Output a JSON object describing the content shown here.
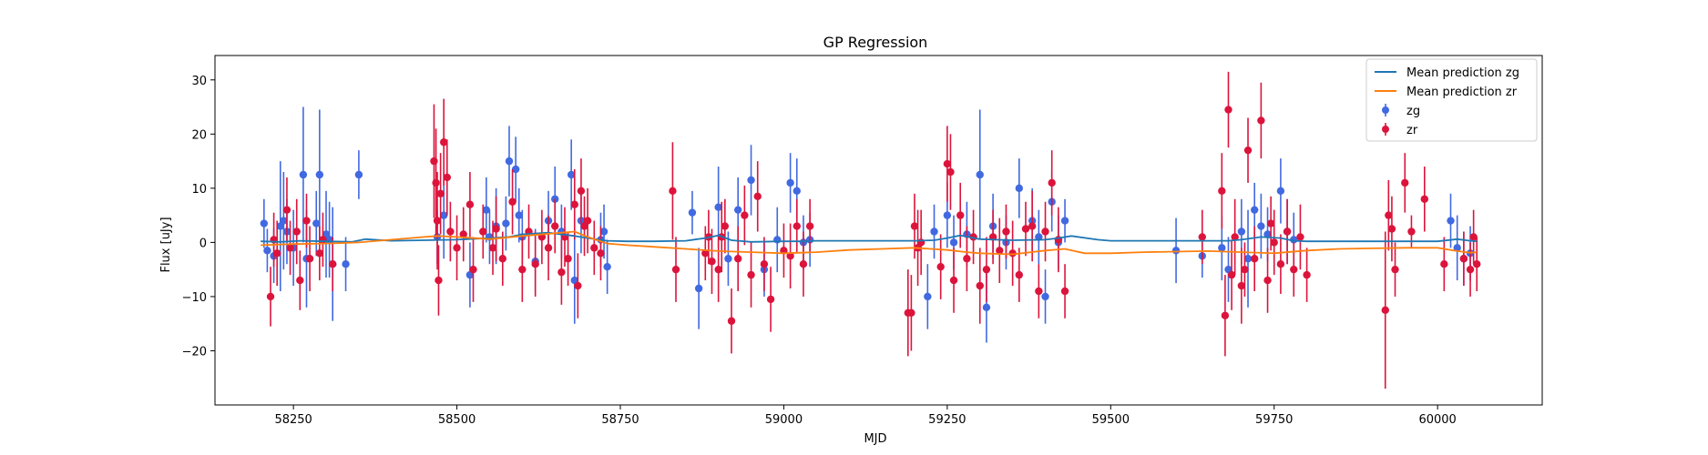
{
  "chart_data": {
    "type": "scatter",
    "title": "GP Regression",
    "xlabel": "MJD",
    "ylabel": "Flux [uJy]",
    "xlim": [
      58130,
      60160
    ],
    "ylim": [
      -30,
      34.5
    ],
    "xticks": [
      58250,
      58500,
      58750,
      59000,
      59250,
      59500,
      59750,
      60000
    ],
    "xtick_labels": [
      "58250",
      "58500",
      "58750",
      "59000",
      "59250",
      "59500",
      "59750",
      "60000"
    ],
    "yticks": [
      -20,
      -10,
      0,
      10,
      20,
      30
    ],
    "ytick_labels": [
      "−20",
      "−10",
      "0",
      "10",
      "20",
      "30"
    ],
    "grid": false,
    "legend_position": "top-right",
    "series": [
      {
        "name": "Mean prediction zg",
        "kind": "line",
        "color": "#1f77b4",
        "x": [
          58200,
          58230,
          58260,
          58300,
          58340,
          58360,
          58400,
          58450,
          58500,
          58550,
          58580,
          58600,
          58640,
          58680,
          58700,
          58730,
          58760,
          58800,
          58850,
          58880,
          58900,
          58920,
          58950,
          59000,
          59030,
          59050,
          59100,
          59150,
          59200,
          59230,
          59250,
          59270,
          59300,
          59350,
          59400,
          59420,
          59440,
          59480,
          59500,
          59550,
          59600,
          59640,
          59680,
          59700,
          59730,
          59760,
          59780,
          59800,
          59850,
          59900,
          59950,
          60000,
          60030,
          60050,
          60060
        ],
        "y": [
          0.2,
          0.1,
          0.3,
          0.2,
          0.1,
          0.6,
          0.3,
          0.4,
          0.5,
          0.8,
          1.0,
          1.5,
          1.8,
          1.2,
          0.8,
          0.3,
          0.2,
          0.2,
          0.3,
          0.8,
          1.3,
          0.4,
          0.1,
          0.2,
          0.2,
          0.3,
          0.3,
          0.3,
          0.3,
          0.4,
          0.8,
          1.3,
          0.6,
          0.4,
          0.5,
          0.8,
          1.2,
          0.5,
          0.3,
          0.3,
          0.3,
          0.3,
          0.3,
          0.5,
          1.0,
          0.8,
          0.3,
          0.2,
          0.2,
          0.2,
          0.2,
          0.2,
          0.6,
          0.3,
          0.2
        ]
      },
      {
        "name": "Mean prediction zr",
        "kind": "line",
        "color": "#ff7f0e",
        "x": [
          58200,
          58250,
          58300,
          58350,
          58400,
          58450,
          58470,
          58500,
          58550,
          58600,
          58650,
          58680,
          58700,
          58730,
          58760,
          58800,
          58850,
          58900,
          58950,
          59000,
          59050,
          59100,
          59150,
          59200,
          59250,
          59280,
          59300,
          59350,
          59400,
          59430,
          59460,
          59500,
          59550,
          59600,
          59650,
          59700,
          59750,
          59800,
          59850,
          59900,
          59950,
          60000,
          60030,
          60050,
          60060
        ],
        "y": [
          -0.5,
          -0.3,
          -0.2,
          0.0,
          0.5,
          1.0,
          1.2,
          1.0,
          0.6,
          1.2,
          1.7,
          2.0,
          1.0,
          -0.2,
          -0.5,
          -0.8,
          -1.2,
          -1.6,
          -1.8,
          -2.0,
          -1.8,
          -1.4,
          -1.2,
          -1.0,
          -1.4,
          -1.8,
          -2.0,
          -2.2,
          -1.5,
          -1.2,
          -2.0,
          -2.0,
          -1.8,
          -1.7,
          -1.6,
          -1.8,
          -2.0,
          -1.5,
          -1.2,
          -1.1,
          -1.0,
          -1.0,
          -1.6,
          -1.9,
          -1.8
        ]
      },
      {
        "name": "zg",
        "kind": "errorbar",
        "color": "#4169e1",
        "x": [
          58205,
          58210,
          58220,
          58230,
          58235,
          58240,
          58250,
          58265,
          58270,
          58285,
          58290,
          58300,
          58305,
          58310,
          58330,
          58350,
          58470,
          58480,
          58520,
          58545,
          58550,
          58560,
          58575,
          58580,
          58590,
          58595,
          58600,
          58620,
          58640,
          58650,
          58660,
          58675,
          58680,
          58690,
          58720,
          58725,
          58730,
          58860,
          58870,
          58900,
          58915,
          58930,
          58950,
          58970,
          58990,
          59010,
          59020,
          59030,
          59040,
          59220,
          59230,
          59250,
          59260,
          59280,
          59300,
          59310,
          59320,
          59340,
          59360,
          59380,
          59390,
          59400,
          59410,
          59420,
          59430,
          59600,
          59640,
          59670,
          59680,
          59700,
          59710,
          59720,
          59730,
          59740,
          59760,
          59770,
          59780,
          60020,
          60030,
          60040,
          60050
        ],
        "y": [
          3.5,
          -1.5,
          -2.5,
          3.0,
          4.0,
          2.0,
          -1.0,
          12.5,
          -3.0,
          3.5,
          12.5,
          1.5,
          0.5,
          -4.0,
          -4.0,
          12.5,
          1.0,
          5.0,
          -6.0,
          6.0,
          1.0,
          3.0,
          3.5,
          15.0,
          13.5,
          5.0,
          1.0,
          -3.5,
          4.0,
          8.0,
          2.0,
          12.5,
          -7.0,
          4.0,
          0.5,
          2.0,
          -4.5,
          5.5,
          -8.5,
          6.5,
          -3.0,
          6.0,
          11.5,
          -5.0,
          0.5,
          11.0,
          9.5,
          0.0,
          0.5,
          -10.0,
          2.0,
          5.0,
          0.0,
          1.5,
          12.5,
          -12.0,
          3.0,
          0.0,
          10.0,
          4.0,
          1.0,
          -10.0,
          7.5,
          0.0,
          4.0,
          -1.5,
          -2.5,
          -1.0,
          -5.0,
          2.0,
          -3.0,
          6.0,
          3.0,
          1.5,
          9.5,
          2.0,
          0.5,
          4.0,
          -1.0,
          -3.0,
          -2.0
        ],
        "err": [
          4.5,
          4.0,
          5.0,
          12.0,
          9.0,
          6.0,
          7.0,
          12.5,
          9.0,
          6.0,
          12.0,
          8.0,
          7.0,
          10.5,
          5.0,
          4.5,
          5.0,
          8.0,
          6.0,
          6.0,
          5.0,
          7.0,
          5.0,
          6.5,
          6.0,
          5.0,
          5.0,
          6.0,
          5.5,
          6.0,
          5.0,
          6.5,
          8.0,
          6.0,
          5.0,
          5.0,
          5.0,
          4.0,
          7.5,
          7.5,
          5.0,
          6.0,
          6.5,
          5.0,
          6.0,
          5.5,
          6.0,
          5.0,
          5.0,
          6.0,
          5.0,
          6.0,
          5.0,
          6.0,
          12.0,
          6.5,
          6.0,
          5.0,
          5.5,
          6.0,
          5.0,
          5.0,
          5.5,
          5.0,
          4.0,
          6.0,
          4.0,
          6.0,
          6.0,
          6.0,
          9.0,
          5.0,
          6.0,
          5.0,
          6.0,
          6.0,
          5.0,
          5.0,
          6.0,
          5.0,
          5.0
        ]
      },
      {
        "name": "zr",
        "kind": "errorbar",
        "color": "#dc143c",
        "x": [
          58215,
          58220,
          58225,
          58240,
          58245,
          58255,
          58260,
          58270,
          58275,
          58290,
          58295,
          58310,
          58465,
          58468,
          58470,
          58472,
          58475,
          58480,
          58485,
          58490,
          58500,
          58510,
          58520,
          58525,
          58540,
          58555,
          58560,
          58570,
          58585,
          58600,
          58610,
          58620,
          58630,
          58640,
          58650,
          58660,
          58665,
          58670,
          58680,
          58685,
          58690,
          58695,
          58700,
          58710,
          58720,
          58830,
          58835,
          58880,
          58885,
          58890,
          58900,
          58905,
          58910,
          58920,
          58930,
          58940,
          58950,
          58960,
          58970,
          58980,
          59000,
          59010,
          59020,
          59030,
          59040,
          59190,
          59195,
          59200,
          59205,
          59210,
          59240,
          59250,
          59255,
          59260,
          59270,
          59280,
          59290,
          59300,
          59310,
          59320,
          59330,
          59340,
          59350,
          59360,
          59370,
          59380,
          59390,
          59400,
          59410,
          59420,
          59430,
          59640,
          59670,
          59675,
          59680,
          59685,
          59690,
          59700,
          59705,
          59710,
          59720,
          59730,
          59740,
          59745,
          59750,
          59760,
          59770,
          59780,
          59790,
          59800,
          59920,
          59925,
          59930,
          59935,
          59950,
          59960,
          59980,
          60010,
          60040,
          60050,
          60055,
          60060
        ],
        "y": [
          -10.0,
          0.5,
          -2.0,
          6.0,
          -1.0,
          2.0,
          -7.0,
          4.0,
          -3.0,
          -2.0,
          0.5,
          -4.0,
          15.0,
          11.0,
          4.0,
          -7.0,
          9.0,
          18.5,
          12.0,
          2.0,
          -1.0,
          1.5,
          7.0,
          -5.0,
          2.0,
          -1.0,
          2.5,
          -3.0,
          7.5,
          -5.0,
          2.0,
          -4.0,
          1.0,
          -1.0,
          3.0,
          -5.5,
          1.0,
          -3.0,
          7.0,
          -8.0,
          9.5,
          3.0,
          4.0,
          -1.0,
          -2.0,
          9.5,
          -5.0,
          -2.0,
          1.0,
          -3.5,
          -5.0,
          1.0,
          3.0,
          -14.5,
          -3.0,
          5.0,
          -6.0,
          8.5,
          -4.0,
          -10.5,
          -1.5,
          -2.5,
          3.0,
          -4.0,
          3.0,
          -13.0,
          -13.0,
          3.0,
          -1.0,
          0.0,
          -4.5,
          14.5,
          13.0,
          -7.0,
          5.0,
          -3.0,
          1.0,
          -8.0,
          -5.0,
          1.0,
          -1.5,
          2.0,
          -2.0,
          -6.0,
          2.5,
          3.0,
          -9.0,
          2.0,
          11.0,
          0.5,
          -9.0,
          1.0,
          9.5,
          -13.5,
          24.5,
          -6.0,
          1.0,
          -8.0,
          -5.0,
          17.0,
          -3.0,
          22.5,
          -7.0,
          3.5,
          0.0,
          -4.0,
          2.0,
          -5.0,
          1.0,
          -6.0,
          -12.5,
          5.0,
          2.5,
          -5.0,
          11.0,
          2.0,
          8.0,
          -4.0,
          -3.0,
          -5.0,
          1.0,
          -4.0
        ],
        "err": [
          5.5,
          5.0,
          6.0,
          6.0,
          5.0,
          6.0,
          5.5,
          5.0,
          6.0,
          5.0,
          5.0,
          5.0,
          10.5,
          10.0,
          9.0,
          6.5,
          7.5,
          8.0,
          7.0,
          5.5,
          6.0,
          5.0,
          6.0,
          6.0,
          5.0,
          5.0,
          6.0,
          5.0,
          6.0,
          6.0,
          5.0,
          6.0,
          5.0,
          6.0,
          5.0,
          6.0,
          5.5,
          5.0,
          6.5,
          6.0,
          6.0,
          5.5,
          6.0,
          5.0,
          5.0,
          9.0,
          6.0,
          5.0,
          5.0,
          6.0,
          6.0,
          6.5,
          5.0,
          6.0,
          6.0,
          5.5,
          6.0,
          6.5,
          5.0,
          6.0,
          5.0,
          6.0,
          5.0,
          6.0,
          5.0,
          8.0,
          7.0,
          6.0,
          7.0,
          6.0,
          6.0,
          7.0,
          7.0,
          6.0,
          6.0,
          6.0,
          5.0,
          7.0,
          6.0,
          5.0,
          6.0,
          5.0,
          6.0,
          5.0,
          5.0,
          6.5,
          5.0,
          5.5,
          6.0,
          6.0,
          5.0,
          5.0,
          7.0,
          7.5,
          7.0,
          6.5,
          7.0,
          7.0,
          5.0,
          6.0,
          6.0,
          7.0,
          6.0,
          5.0,
          6.0,
          5.5,
          6.0,
          5.0,
          6.0,
          5.0,
          14.5,
          6.5,
          6.0,
          5.0,
          5.5,
          3.0,
          6.0,
          5.0,
          5.0,
          5.0,
          5.0,
          5.0
        ]
      }
    ]
  }
}
